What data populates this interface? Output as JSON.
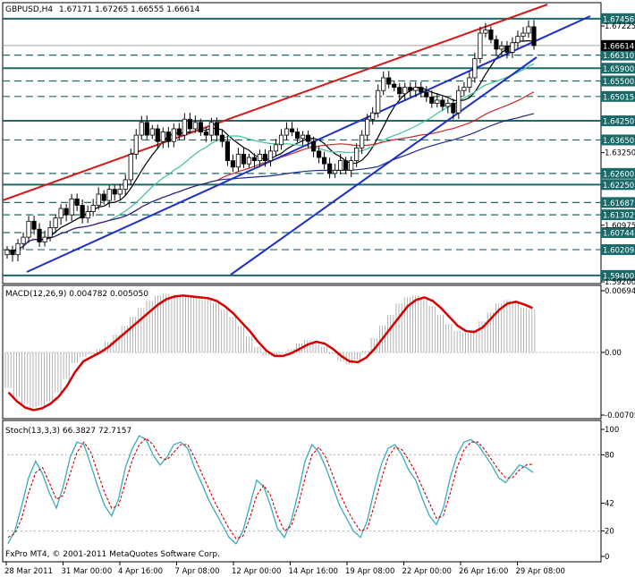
{
  "header": {
    "symbol": "GBPUSD,H4",
    "ohlc": "1.67171 1.67265 1.66555 1.66614"
  },
  "colors": {
    "bull_candle": "#ffffff",
    "bear_candle": "#000000",
    "upper_channel": "#d41a1a",
    "support_lines": "#1e2fc8",
    "level_lines": "#1a6a6a",
    "ma_short": "#000000",
    "ma_mid": "#3fc39a",
    "ma_long": "#c82828",
    "ma_longest": "#1e2a8a",
    "macd_signal": "#d40000",
    "macd_histogram": "#a0a0a0",
    "stoch_main": "#3aaabc",
    "stoch_signal": "#cc0000"
  },
  "chart_data": [
    {
      "type": "candlestick",
      "name": "GBPUSD,H4",
      "ylim": [
        1.592,
        1.679
      ],
      "price_levels": [
        "1.67456",
        "1.66310",
        "1.65900",
        "1.65500",
        "1.65015",
        "1.64250",
        "1.63650",
        "1.62600",
        "1.62250",
        "1.61687",
        "1.61302",
        "1.60744",
        "1.60209",
        "1.59400"
      ],
      "current_price": "1.66614",
      "axis_ticks": [
        {
          "label": "1.67225",
          "value": 1.67225
        },
        {
          "label": "1.63250",
          "value": 1.6325
        },
        {
          "label": "1.60975",
          "value": 1.60975
        },
        {
          "label": "1.59200",
          "value": 1.592
        }
      ],
      "x_tick_labels": [
        "28 Mar 2011",
        "31 Mar 00:00",
        "4 Apr 16:00",
        "7 Apr 08:00",
        "12 Apr 00:00",
        "14 Apr 16:00",
        "19 Apr 08:00",
        "22 Apr 00:00",
        "26 Apr 16:00",
        "29 Apr 08:00"
      ],
      "close": [
        1.602,
        1.6005,
        1.604,
        1.606,
        1.611,
        1.6085,
        1.6045,
        1.606,
        1.609,
        1.612,
        1.615,
        1.613,
        1.618,
        1.616,
        1.612,
        1.614,
        1.616,
        1.6195,
        1.6175,
        1.621,
        1.6195,
        1.621,
        1.624,
        1.632,
        1.638,
        1.642,
        1.638,
        1.64,
        1.636,
        1.639,
        1.636,
        1.64,
        1.638,
        1.643,
        1.64,
        1.642,
        1.639,
        1.638,
        1.642,
        1.638,
        1.636,
        1.63,
        1.628,
        1.632,
        1.629,
        1.631,
        1.63,
        1.632,
        1.63,
        1.633,
        1.635,
        1.638,
        1.64,
        1.639,
        1.637,
        1.638,
        1.636,
        1.633,
        1.631,
        1.629,
        1.626,
        1.627,
        1.63,
        1.627,
        1.63,
        1.634,
        1.638,
        1.643,
        1.645,
        1.652,
        1.656,
        1.654,
        1.653,
        1.651,
        1.653,
        1.652,
        1.653,
        1.6515,
        1.65,
        1.648,
        1.649,
        1.647,
        1.648,
        1.645,
        1.652,
        1.653,
        1.656,
        1.662,
        1.67,
        1.671,
        1.668,
        1.665,
        1.666,
        1.664,
        1.667,
        1.669,
        1.67,
        1.672,
        1.6661
      ]
    },
    {
      "type": "line",
      "name": "MACD(12,26,9)",
      "label": "MACD(12,26,9) 0.004782 0.005050",
      "ylim": [
        -0.00705,
        0.00694
      ],
      "axis_ticks": [
        {
          "label": "0.00694",
          "value": 0.00694
        },
        {
          "label": "0.00",
          "value": 0.0
        },
        {
          "label": "-0.00705",
          "value": -0.00705
        }
      ],
      "series": [
        {
          "values": [
            -0.004,
            -0.005,
            -0.0058,
            -0.0062,
            -0.006,
            -0.0055,
            -0.0045,
            -0.003,
            -0.0012,
            -0.0005,
            -0.0002,
            0.0004,
            0.0012,
            0.002,
            0.003,
            0.004,
            0.005,
            0.0058,
            0.0064,
            0.0066,
            0.0065,
            0.0064,
            0.0063,
            0.0062,
            0.006,
            0.0056,
            0.0048,
            0.004,
            0.003,
            0.0018,
            0.0006,
            -0.0003,
            -0.0004,
            -0.0001,
            0.0004,
            0.001,
            0.0014,
            0.0012,
            0.0006,
            -0.0002,
            -0.001,
            -0.0013,
            -0.0008,
            0.0002,
            0.0016,
            0.003,
            0.0042,
            0.0055,
            0.0062,
            0.0064,
            0.006,
            0.0052,
            0.0042,
            0.0032,
            0.0024,
            0.0022,
            0.0025,
            0.0035,
            0.0045,
            0.0055,
            0.0059,
            0.0057,
            0.005,
            0.0048
          ]
        },
        {
          "values": [
            -0.0045,
            -0.0055,
            -0.0062,
            -0.0065,
            -0.0063,
            -0.0058,
            -0.005,
            -0.0038,
            -0.0022,
            -0.001,
            -0.0005,
            0.0,
            0.0006,
            0.0014,
            0.0022,
            0.003,
            0.0038,
            0.0046,
            0.0054,
            0.006,
            0.0063,
            0.0064,
            0.0063,
            0.0062,
            0.0061,
            0.0058,
            0.0052,
            0.0044,
            0.0034,
            0.0024,
            0.0012,
            0.0002,
            -0.0004,
            -0.0004,
            -0.0001,
            0.0004,
            0.0009,
            0.0012,
            0.001,
            0.0004,
            -0.0004,
            -0.001,
            -0.0011,
            -0.0006,
            0.0004,
            0.0016,
            0.0028,
            0.004,
            0.0052,
            0.0059,
            0.0062,
            0.0058,
            0.005,
            0.004,
            0.003,
            0.0024,
            0.0023,
            0.0028,
            0.0038,
            0.0048,
            0.0055,
            0.0057,
            0.0054,
            0.005
          ]
        }
      ]
    },
    {
      "type": "line",
      "name": "Stoch(13,3,3)",
      "label": "Stoch(13,3,3) 66.3827 72.7157",
      "ylim": [
        0,
        100
      ],
      "axis_ticks": [
        {
          "label": "100",
          "value": 100
        },
        {
          "label": "80",
          "value": 80
        },
        {
          "label": "42",
          "value": 42
        },
        {
          "label": "20",
          "value": 20
        },
        {
          "label": "0",
          "value": 0
        }
      ],
      "series": [
        {
          "values": [
            10,
            20,
            40,
            62,
            75,
            65,
            50,
            38,
            55,
            78,
            90,
            88,
            72,
            55,
            40,
            32,
            45,
            70,
            85,
            95,
            92,
            80,
            72,
            78,
            88,
            90,
            85,
            70,
            58,
            45,
            35,
            25,
            15,
            10,
            20,
            40,
            60,
            55,
            40,
            22,
            15,
            28,
            50,
            75,
            88,
            82,
            70,
            55,
            40,
            30,
            20,
            15,
            28,
            52,
            72,
            85,
            88,
            80,
            68,
            60,
            45,
            32,
            25,
            38,
            62,
            80,
            90,
            92,
            88,
            80,
            72,
            62,
            58,
            65,
            72,
            70,
            66
          ]
        },
        {
          "values": [
            15,
            18,
            30,
            50,
            66,
            70,
            58,
            45,
            48,
            65,
            82,
            90,
            82,
            66,
            50,
            38,
            40,
            58,
            76,
            88,
            93,
            88,
            78,
            76,
            82,
            88,
            88,
            78,
            66,
            54,
            42,
            32,
            22,
            14,
            16,
            30,
            48,
            56,
            48,
            32,
            20,
            24,
            40,
            62,
            80,
            86,
            78,
            64,
            50,
            38,
            28,
            20,
            22,
            40,
            60,
            78,
            86,
            84,
            76,
            66,
            54,
            42,
            30,
            32,
            50,
            70,
            84,
            90,
            90,
            84,
            76,
            68,
            62,
            62,
            68,
            72,
            72.7
          ]
        }
      ]
    }
  ],
  "footer": {
    "copyright": "FxPro MT4, © 2001-2011 MetaQuotes Software Corp."
  }
}
